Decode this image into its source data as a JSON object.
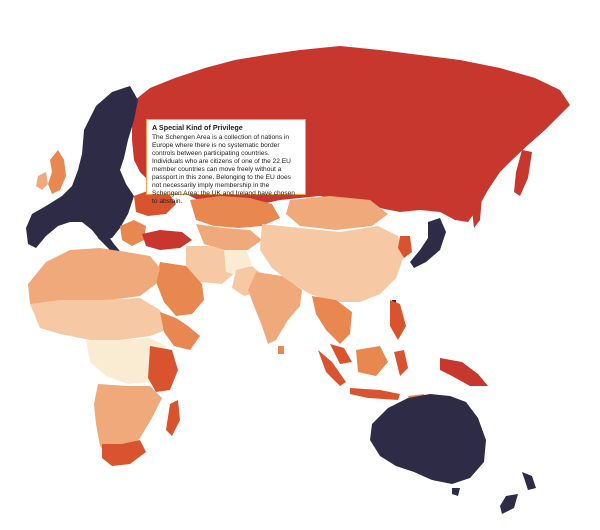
{
  "tooltip": {
    "title": "A Special Kind of Privilege",
    "body": "The Schengen Area is a collection of nations in Europe where there is no systematic border controls between participating countries. Individuals who are citizens of one of the 22 EU member countries can move freely without a passport in this zone. Belonging to the EU does not necessarily imply membership in the Schengen Area; the UK and Ireland have chosen to abstain."
  },
  "colors": {
    "schengen": "#2d2b45",
    "dark_red": "#c8372d",
    "red": "#d9542e",
    "orange": "#e8874f",
    "light_orange": "#f0a97a",
    "peach": "#f6c9a4",
    "cream": "#faecd3",
    "tooltip_border": "#f0a34a"
  }
}
